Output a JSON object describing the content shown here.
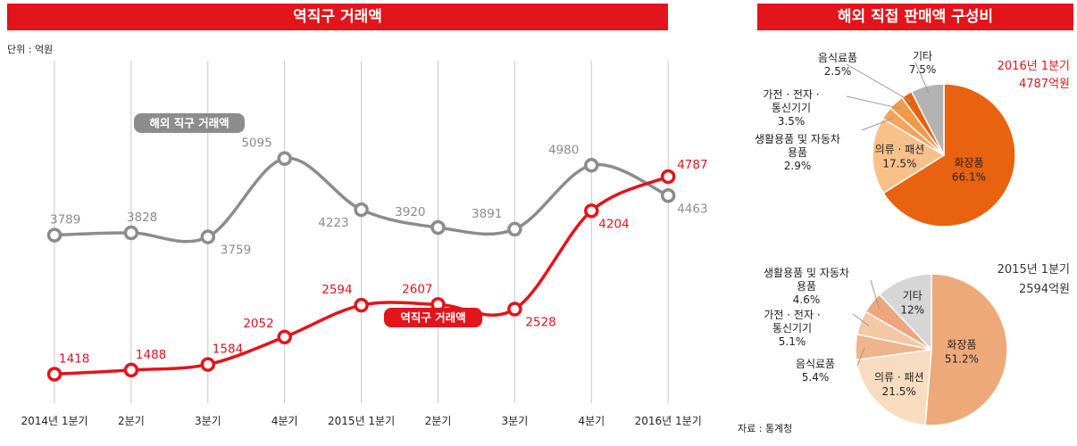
{
  "line_title": "역직구 거래액",
  "pie_title": "해외 직접 판매액 구성비",
  "unit_label": "단위 : 억원",
  "source_label": "자료 : 통계청",
  "colors": {
    "red": "#e3141b",
    "gray": "#8c8c8c"
  },
  "chart_data": [
    {
      "type": "line",
      "title": "역직구 거래액",
      "unit": "단위 : 억원",
      "categories": [
        "2014년 1분기",
        "2분기",
        "3분기",
        "4분기",
        "2015년 1분기",
        "2분기",
        "3분기",
        "4분기",
        "2016년 1분기"
      ],
      "series": [
        {
          "name": "해외 직구 거래액",
          "color": "#8c8c8c",
          "values": [
            3789,
            3828,
            3759,
            5095,
            4223,
            3920,
            3891,
            4980,
            4463
          ]
        },
        {
          "name": "역직구 거래액",
          "color": "#e3141b",
          "values": [
            1418,
            1488,
            1584,
            2052,
            2594,
            2607,
            2528,
            4204,
            4787
          ]
        }
      ],
      "grid": "vertical"
    },
    {
      "type": "pie",
      "title": "해외 직접 판매액 구성비",
      "period_label": "2016년 1분기",
      "total_label": "4787억원",
      "slices": [
        {
          "label": "화장품",
          "value": "66.1%",
          "pct": 66.1,
          "color": "#e8620f",
          "text_color": "#ffffff",
          "inside": true
        },
        {
          "label": "의류 · 패션",
          "value": "17.5%",
          "pct": 17.5,
          "color": "#f8c18a",
          "text_color": "#222222",
          "inside": true
        },
        {
          "label": "생활용품 및 자동차 용품",
          "value": "2.9%",
          "pct": 2.9,
          "color": "#f6a35b",
          "inside": false
        },
        {
          "label": "가전 · 전자 · 통신기기",
          "value": "3.5%",
          "pct": 3.5,
          "color": "#f39a48",
          "inside": false
        },
        {
          "label": "음식료품",
          "value": "2.5%",
          "pct": 2.5,
          "color": "#e8620f",
          "inside": false
        },
        {
          "label": "기타",
          "value": "7.5%",
          "pct": 7.5,
          "color": "#b3b3b3",
          "inside": false
        }
      ]
    },
    {
      "type": "pie",
      "period_label": "2015년 1분기",
      "total_label": "2594억원",
      "slices": [
        {
          "label": "화장품",
          "value": "51.2%",
          "pct": 51.2,
          "color": "#eea97a",
          "text_color": "#222222",
          "inside": true
        },
        {
          "label": "의류 · 패션",
          "value": "21.5%",
          "pct": 21.5,
          "color": "#f8dcc0",
          "text_color": "#222222",
          "inside": true
        },
        {
          "label": "음식료품",
          "value": "5.4%",
          "pct": 5.4,
          "color": "#f0b48c",
          "inside": false
        },
        {
          "label": "가전 · 전자 · 통신기기",
          "value": "5.1%",
          "pct": 5.1,
          "color": "#f4c8a4",
          "inside": false
        },
        {
          "label": "생활용품 및 자동차 용품",
          "value": "4.6%",
          "pct": 4.6,
          "color": "#eda67c",
          "inside": false
        },
        {
          "label": "기타",
          "value": "12%",
          "pct": 12,
          "color": "#d6d6d6",
          "text_color": "#222222",
          "inside": true
        }
      ]
    }
  ]
}
